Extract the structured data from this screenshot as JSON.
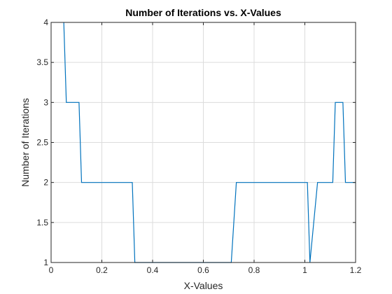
{
  "chart_data": {
    "type": "line",
    "title": "Number of Iterations vs. X-Values",
    "xlabel": "X-Values",
    "ylabel": "Number of Iterations",
    "xlim": [
      0,
      1.2
    ],
    "ylim": [
      1,
      4
    ],
    "xticks": [
      0,
      0.2,
      0.4,
      0.6,
      0.8,
      1,
      1.2
    ],
    "xtick_labels": [
      "0",
      "0.2",
      "0.4",
      "0.6",
      "0.8",
      "1",
      "1.2"
    ],
    "yticks": [
      1,
      1.5,
      2,
      2.5,
      3,
      3.5,
      4
    ],
    "ytick_labels": [
      "1",
      "1.5",
      "2",
      "2.5",
      "3",
      "3.5",
      "4"
    ],
    "grid": true,
    "line_color": "#0072BD",
    "series": [
      {
        "x": [
          0.05,
          0.06,
          0.11,
          0.12,
          0.32,
          0.33,
          0.71,
          0.73,
          1.01,
          1.02,
          1.05,
          1.11,
          1.12,
          1.15,
          1.16,
          1.2
        ],
        "y": [
          4,
          3,
          3,
          2,
          2,
          1,
          1,
          2,
          2,
          1,
          2,
          2,
          3,
          3,
          2,
          2
        ]
      }
    ]
  }
}
